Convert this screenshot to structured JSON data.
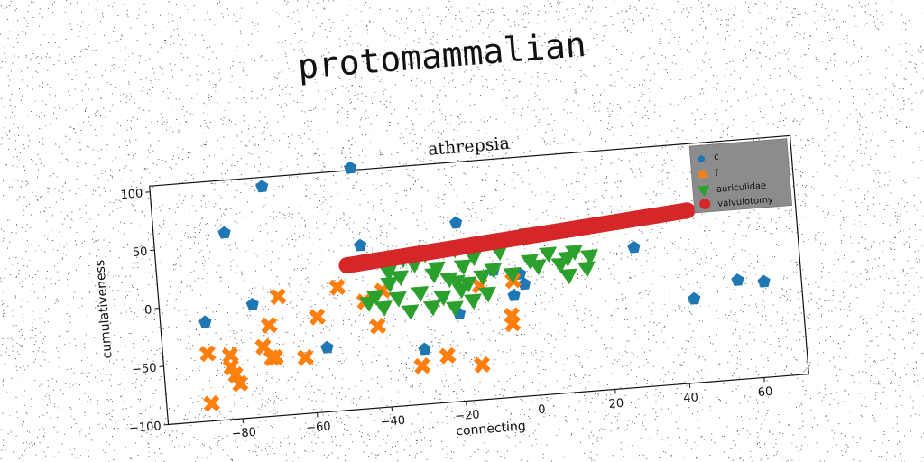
{
  "figure": {
    "suptitle": "protomammalian"
  },
  "chart_data": {
    "type": "scatter",
    "title": "athrepsia",
    "xlabel": "connecting",
    "ylabel": "cumulativeness",
    "xlim": [
      -100,
      72
    ],
    "ylim": [
      -100,
      105
    ],
    "xticks": [
      -80,
      -60,
      -40,
      -20,
      0,
      20,
      40,
      60
    ],
    "yticks": [
      -100,
      -50,
      0,
      50,
      100
    ],
    "grid": false,
    "legend_position": "top-right",
    "series": [
      {
        "name": "c",
        "marker": "pentagon",
        "color": "#1f77b4",
        "points": [
          [
            -70,
            97
          ],
          [
            -46,
            107
          ],
          [
            -81,
            60
          ],
          [
            -19,
            53
          ],
          [
            -45,
            40
          ],
          [
            -88,
            -15
          ],
          [
            -75,
            -3
          ],
          [
            -56,
            -45
          ],
          [
            -30,
            -53
          ],
          [
            -10,
            10
          ],
          [
            -3,
            5
          ],
          [
            -5,
            -13
          ],
          [
            -2,
            -4
          ],
          [
            28,
            20
          ],
          [
            43,
            -28
          ],
          [
            55,
            -15
          ],
          [
            62,
            -18
          ],
          [
            62,
            73
          ],
          [
            -20,
            -25
          ]
        ]
      },
      {
        "name": "f",
        "marker": "x",
        "color": "#ff7f0e",
        "points": [
          [
            -88,
            -42
          ],
          [
            -82,
            -45
          ],
          [
            -82,
            -55
          ],
          [
            -81,
            -62
          ],
          [
            -80,
            -70
          ],
          [
            -73,
            -40
          ],
          [
            -71,
            -50
          ],
          [
            -70,
            -50
          ],
          [
            -71,
            -22
          ],
          [
            -68,
            2
          ],
          [
            -62,
            -52
          ],
          [
            -58,
            -18
          ],
          [
            -52,
            6
          ],
          [
            -42,
            -30
          ],
          [
            -45,
            -8
          ],
          [
            -40,
            0
          ],
          [
            -31,
            -67
          ],
          [
            -24,
            -60
          ],
          [
            -15,
            -70
          ],
          [
            -6,
            -30
          ],
          [
            -6,
            -37
          ],
          [
            -5,
            0
          ],
          [
            -14,
            -2
          ],
          [
            -88,
            -85
          ]
        ]
      },
      {
        "name": "auriculidae",
        "marker": "triangle-down",
        "color": "#2ca02c",
        "points": [
          [
            -44,
            -10
          ],
          [
            -42,
            -5
          ],
          [
            -40,
            -15
          ],
          [
            -38,
            5
          ],
          [
            -36,
            -8
          ],
          [
            -34,
            25
          ],
          [
            -33,
            -20
          ],
          [
            -31,
            20
          ],
          [
            -30,
            -5
          ],
          [
            -28,
            28
          ],
          [
            -27,
            -18
          ],
          [
            -25,
            15
          ],
          [
            -24,
            -10
          ],
          [
            -22,
            5
          ],
          [
            -21,
            -20
          ],
          [
            -20,
            30
          ],
          [
            -19,
            -5
          ],
          [
            -18,
            15
          ],
          [
            -17,
            0
          ],
          [
            -16,
            -15
          ],
          [
            -15,
            22
          ],
          [
            -13,
            5
          ],
          [
            -12,
            -10
          ],
          [
            -10,
            10
          ],
          [
            -8,
            25
          ],
          [
            -5,
            5
          ],
          [
            0,
            15
          ],
          [
            0,
            38
          ],
          [
            2,
            10
          ],
          [
            5,
            20
          ],
          [
            8,
            10
          ],
          [
            10,
            0
          ],
          [
            10,
            15
          ],
          [
            12,
            20
          ],
          [
            15,
            5
          ],
          [
            16,
            15
          ],
          [
            -26,
            10
          ],
          [
            -35,
            10
          ],
          [
            -20,
            2
          ],
          [
            -38,
            15
          ]
        ]
      },
      {
        "name": "valvulotomy",
        "marker": "circle",
        "color": "#d62728",
        "line": {
          "x_start": -49,
          "y_start": 24,
          "x_end": 43,
          "y_end": 48
        }
      }
    ]
  }
}
